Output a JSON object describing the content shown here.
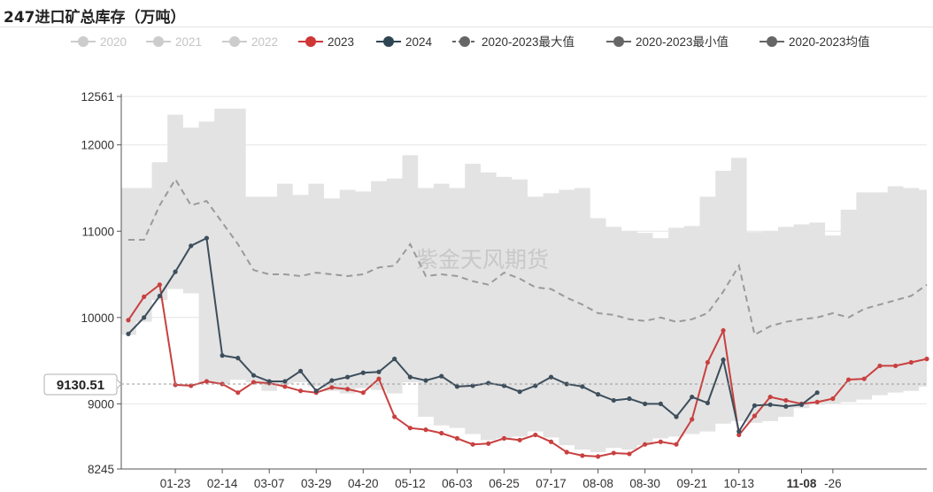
{
  "title": "247进口矿总库存（万吨）",
  "watermark": "紫金天风期货",
  "pointer_label": "9130.51",
  "chart_data": {
    "type": "line",
    "title": "247进口矿总库存（万吨）",
    "ylim": [
      8245,
      12561
    ],
    "yticks": [
      "12561",
      "12000",
      "11000",
      "10000",
      "9000",
      "8245"
    ],
    "ytick_values": [
      12561,
      12000,
      11000,
      10000,
      9000,
      8245
    ],
    "xticks": [
      "01-23",
      "02-14",
      "03-07",
      "03-29",
      "04-20",
      "05-12",
      "06-03",
      "06-25",
      "07-17",
      "08-08",
      "08-30",
      "09-21",
      "10-13",
      "11-08",
      "-26"
    ],
    "xtick_index": [
      3,
      6,
      9,
      12,
      15,
      18,
      21,
      24,
      27,
      30,
      33,
      36,
      39,
      43,
      45
    ],
    "highlight_tick": "11-08",
    "week_count": 52,
    "legend": [
      {
        "name": "2020",
        "color": "#cccccc",
        "dashed": false
      },
      {
        "name": "2021",
        "color": "#cccccc",
        "dashed": false
      },
      {
        "name": "2022",
        "color": "#cccccc",
        "dashed": false
      },
      {
        "name": "2023",
        "color": "#d03636",
        "dashed": false
      },
      {
        "name": "2024",
        "color": "#2f4554",
        "dashed": false
      },
      {
        "name": "2020-2023最大值",
        "color": "#666666",
        "dashed": true
      },
      {
        "name": "2020-2023最小值",
        "color": "#666666",
        "dashed": false
      },
      {
        "name": "2020-2023均值",
        "color": "#666666",
        "dashed": false
      }
    ],
    "series": [
      {
        "name": "2020-2023最大值",
        "values": [
          11500,
          11500,
          11800,
          12350,
          12200,
          12270,
          12420,
          12420,
          11400,
          11400,
          11550,
          11420,
          11550,
          11380,
          11480,
          11460,
          11580,
          11610,
          11880,
          11500,
          11550,
          11500,
          11780,
          11680,
          11630,
          11600,
          11400,
          11440,
          11480,
          11500,
          11150,
          11050,
          11000,
          10980,
          10920,
          11040,
          11060,
          11400,
          11700,
          11850,
          10990,
          11000,
          11050,
          11080,
          11100,
          10950,
          11250,
          11450,
          11450,
          11520,
          11500,
          11480
        ]
      },
      {
        "name": "2020-2023最小值",
        "values": [
          9800,
          9950,
          10200,
          10330,
          10280,
          9250,
          9230,
          9280,
          9250,
          9150,
          9230,
          9250,
          9200,
          9150,
          9120,
          9180,
          9160,
          9120,
          9250,
          8850,
          8750,
          8720,
          8650,
          8580,
          8600,
          8620,
          8680,
          8610,
          8520,
          8470,
          8440,
          8490,
          8470,
          8520,
          8600,
          8620,
          8650,
          8680,
          8770,
          8800,
          8780,
          8800,
          8850,
          8950,
          8990,
          9000,
          9020,
          9050,
          9100,
          9130,
          9150,
          9200
        ]
      },
      {
        "name": "2020-2023均值",
        "values": [
          10900,
          10900,
          11300,
          11600,
          11300,
          11350,
          11100,
          10850,
          10550,
          10500,
          10500,
          10480,
          10520,
          10500,
          10480,
          10500,
          10580,
          10600,
          10850,
          10480,
          10500,
          10480,
          10420,
          10380,
          10520,
          10450,
          10350,
          10330,
          10230,
          10150,
          10050,
          10030,
          9980,
          9960,
          10000,
          9950,
          9980,
          10050,
          10300,
          10600,
          9800,
          9900,
          9950,
          9980,
          10000,
          10050,
          10000,
          10100,
          10150,
          10200,
          10250,
          10380
        ]
      },
      {
        "name": "2023",
        "values": [
          9970,
          10240,
          10380,
          9220,
          9210,
          9260,
          9230,
          9130,
          9250,
          9240,
          9200,
          9150,
          9130,
          9190,
          9170,
          9130,
          9290,
          8850,
          8720,
          8700,
          8660,
          8600,
          8530,
          8540,
          8600,
          8580,
          8640,
          8560,
          8440,
          8400,
          8390,
          8430,
          8420,
          8530,
          8560,
          8530,
          8820,
          9480,
          9850,
          8640,
          8860,
          9080,
          9040,
          9000,
          9020,
          9060,
          9280,
          9290,
          9440,
          9440,
          9480,
          9520
        ]
      },
      {
        "name": "2024",
        "values": [
          9810,
          10000,
          10250,
          10530,
          10830,
          10920,
          9560,
          9530,
          9330,
          9260,
          9260,
          9380,
          9150,
          9270,
          9310,
          9360,
          9370,
          9520,
          9310,
          9270,
          9320,
          9200,
          9210,
          9240,
          9210,
          9140,
          9210,
          9310,
          9230,
          9200,
          9110,
          9040,
          9060,
          9000,
          9000,
          8850,
          9080,
          9010,
          9510,
          8680,
          8980,
          8990,
          8970,
          8990,
          9130
        ]
      }
    ]
  }
}
